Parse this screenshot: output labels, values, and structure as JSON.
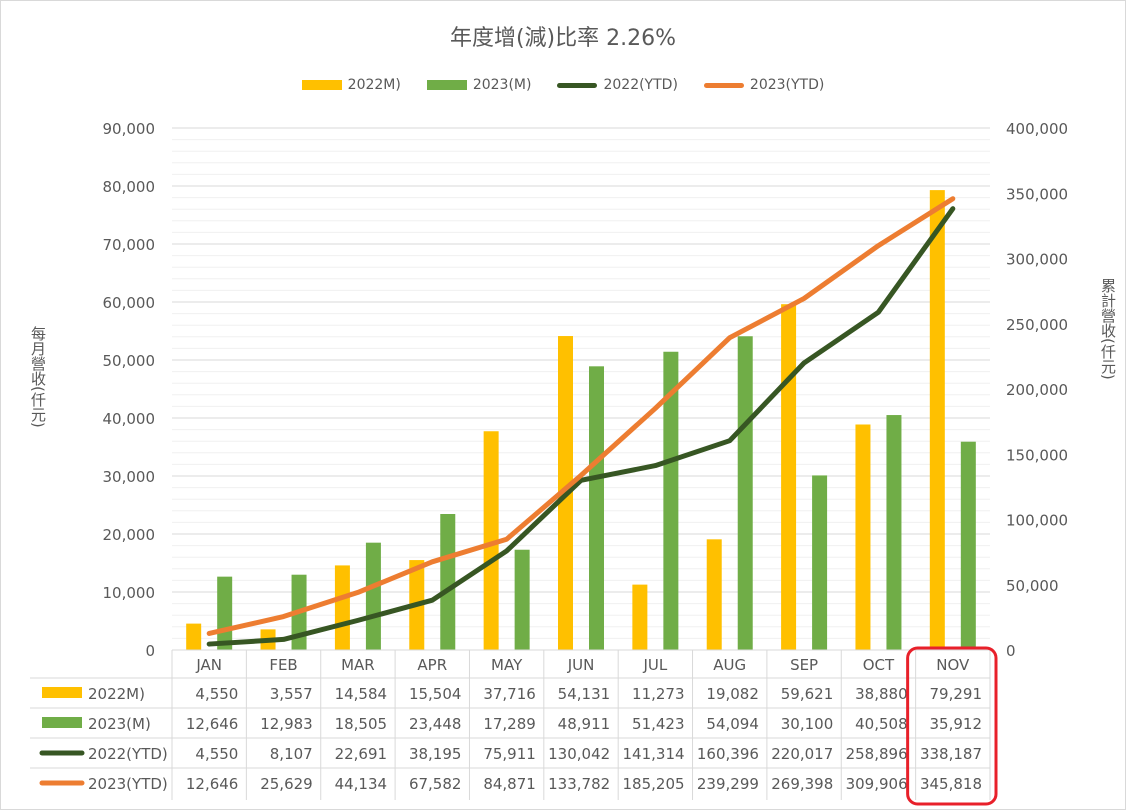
{
  "chart_data": {
    "type": "bar",
    "title": "年度增(減)比率 2.26%",
    "categories": [
      "JAN",
      "FEB",
      "MAR",
      "APR",
      "MAY",
      "JUN",
      "JUL",
      "AUG",
      "SEP",
      "OCT",
      "NOV"
    ],
    "y_left_label": "每月營收(仟元)",
    "y_right_label": "累計營收(仟元)",
    "y_left_range": [
      0,
      90000
    ],
    "y_right_range": [
      0,
      400000
    ],
    "y_left_ticks": [
      "0",
      "10,000",
      "20,000",
      "30,000",
      "40,000",
      "50,000",
      "60,000",
      "70,000",
      "80,000",
      "90,000"
    ],
    "y_right_ticks": [
      "0",
      "50,000",
      "100,000",
      "150,000",
      "200,000",
      "250,000",
      "300,000",
      "350,000",
      "400,000"
    ],
    "grid": true,
    "legend_position": "top",
    "highlight_category": "NOV",
    "series": [
      {
        "name": "2022M)",
        "kind": "bar",
        "axis": "left",
        "color": "#FFC000",
        "values": [
          4550,
          3557,
          14584,
          15504,
          37716,
          54131,
          11273,
          19082,
          59621,
          38880,
          79291
        ],
        "labels": [
          "4,550",
          "3,557",
          "14,584",
          "15,504",
          "37,716",
          "54,131",
          "11,273",
          "19,082",
          "59,621",
          "38,880",
          "79,291"
        ]
      },
      {
        "name": "2023(M)",
        "kind": "bar",
        "axis": "left",
        "color": "#70AD47",
        "values": [
          12646,
          12983,
          18505,
          23448,
          17289,
          48911,
          51423,
          54094,
          30100,
          40508,
          35912
        ],
        "labels": [
          "12,646",
          "12,983",
          "18,505",
          "23,448",
          "17,289",
          "48,911",
          "51,423",
          "54,094",
          "30,100",
          "40,508",
          "35,912"
        ]
      },
      {
        "name": "2022(YTD)",
        "kind": "line",
        "axis": "right",
        "color": "#375623",
        "values": [
          4550,
          8107,
          22691,
          38195,
          75911,
          130042,
          141314,
          160396,
          220017,
          258896,
          338187
        ],
        "labels": [
          "4,550",
          "8,107",
          "22,691",
          "38,195",
          "75,911",
          "130,042",
          "141,314",
          "160,396",
          "220,017",
          "258,896",
          "338,187"
        ]
      },
      {
        "name": "2023(YTD)",
        "kind": "line",
        "axis": "right",
        "color": "#ED7D31",
        "values": [
          12646,
          25629,
          44134,
          67582,
          84871,
          133782,
          185205,
          239299,
          269398,
          309906,
          345818
        ],
        "labels": [
          "12,646",
          "25,629",
          "44,134",
          "67,582",
          "84,871",
          "133,782",
          "185,205",
          "239,299",
          "269,398",
          "309,906",
          "345,818"
        ]
      }
    ],
    "legend": [
      {
        "name": "2022M)",
        "color": "#FFC000",
        "kind": "bar"
      },
      {
        "name": "2023(M)",
        "color": "#70AD47",
        "kind": "bar"
      },
      {
        "name": "2022(YTD)",
        "color": "#375623",
        "kind": "line"
      },
      {
        "name": "2023(YTD)",
        "color": "#ED7D31",
        "kind": "line"
      }
    ]
  }
}
